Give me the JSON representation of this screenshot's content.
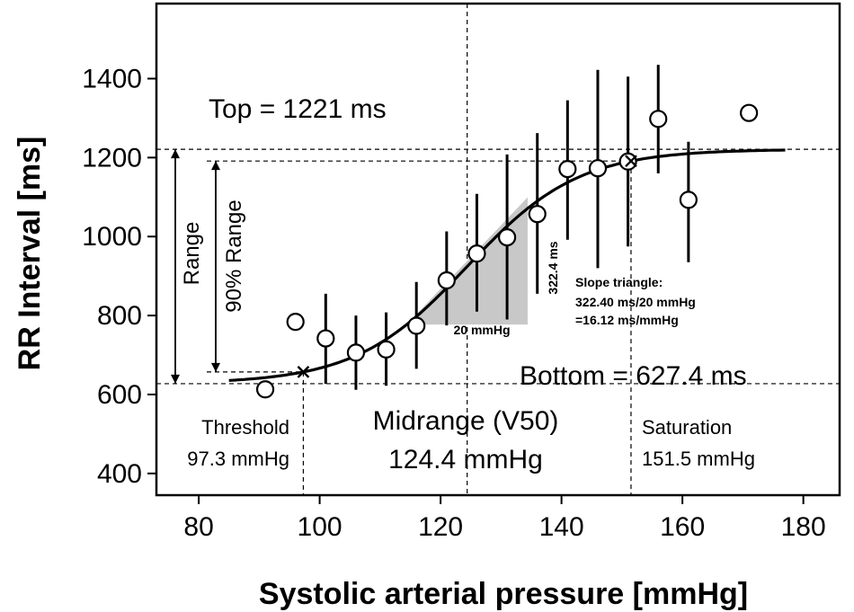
{
  "chart_data": {
    "type": "scatter",
    "xlabel": "Systolic arterial pressure [mmHg]",
    "ylabel": "RR Interval [ms]",
    "xlim": [
      73,
      186
    ],
    "ylim": [
      345,
      1590
    ],
    "xticks": [
      80,
      100,
      120,
      140,
      160,
      180
    ],
    "yticks": [
      400,
      600,
      800,
      1000,
      1200,
      1400
    ],
    "points": [
      {
        "x": 91,
        "y": 613,
        "lo": null,
        "hi": null
      },
      {
        "x": 96,
        "y": 784,
        "lo": null,
        "hi": null
      },
      {
        "x": 101,
        "y": 742,
        "lo": 627,
        "hi": 855
      },
      {
        "x": 106,
        "y": 706,
        "lo": 612,
        "hi": 800
      },
      {
        "x": 111,
        "y": 714,
        "lo": 622,
        "hi": 808
      },
      {
        "x": 116,
        "y": 774,
        "lo": 665,
        "hi": 885
      },
      {
        "x": 121,
        "y": 889,
        "lo": 775,
        "hi": 1013
      },
      {
        "x": 126,
        "y": 957,
        "lo": 810,
        "hi": 1108
      },
      {
        "x": 131,
        "y": 998,
        "lo": 790,
        "hi": 1208
      },
      {
        "x": 136,
        "y": 1057,
        "lo": 855,
        "hi": 1262
      },
      {
        "x": 141,
        "y": 1171,
        "lo": 992,
        "hi": 1345
      },
      {
        "x": 146,
        "y": 1173,
        "lo": 920,
        "hi": 1422
      },
      {
        "x": 151,
        "y": 1190,
        "lo": 975,
        "hi": 1405
      },
      {
        "x": 156,
        "y": 1298,
        "lo": 1160,
        "hi": 1435
      },
      {
        "x": 161,
        "y": 1093,
        "lo": 935,
        "hi": 1240
      },
      {
        "x": 171,
        "y": 1313,
        "lo": null,
        "hi": null
      }
    ],
    "fit": {
      "type": "sigmoid",
      "bottom": 627.4,
      "top": 1221,
      "v50": 124.4,
      "slope": 16.12,
      "x_range": [
        85,
        177
      ]
    },
    "markers": [
      {
        "x": 97.3,
        "label": "threshold"
      },
      {
        "x": 151.5,
        "label": "saturation"
      }
    ],
    "slope_triangle": {
      "x0": 114.4,
      "x1": 134.4,
      "dy": 322.4
    },
    "annotations": {
      "top": "Top = 1221 ms",
      "bottom": "Bottom = 627.4 ms",
      "range": "Range",
      "range90": "90% Range",
      "threshold_label": "Threshold",
      "threshold_value": "97.3 mmHg",
      "midrange_label": "Midrange (V50)",
      "midrange_value": "124.4 mmHg",
      "saturation_label": "Saturation",
      "saturation_value": "151.5 mmHg",
      "triangle_dy": "322.4 ms",
      "triangle_dx": "20 mmHg",
      "slope_title": "Slope triangle:",
      "slope_calc": "322.40 ms/20 mmHg",
      "slope_result": "=16.12 ms/mmHg"
    }
  }
}
